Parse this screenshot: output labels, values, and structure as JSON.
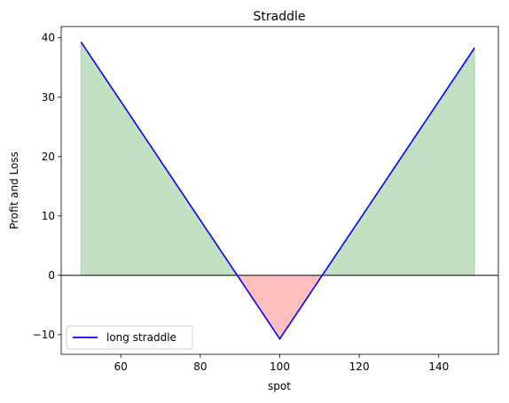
{
  "chart_data": {
    "type": "line",
    "title": "Straddle",
    "xlabel": "spot",
    "ylabel": "Profit and Loss",
    "xlim": [
      45,
      155
    ],
    "ylim": [
      -13.3,
      41.9
    ],
    "x_ticks": [
      60,
      80,
      100,
      120,
      140
    ],
    "y_ticks": [
      -10,
      0,
      10,
      20,
      30,
      40
    ],
    "grid": false,
    "legend_position": "lower-left",
    "zero_line": 0,
    "series": [
      {
        "name": "long straddle",
        "color": "#0000ff",
        "x": [
          50,
          100,
          149
        ],
        "y": [
          39.3,
          -10.7,
          38.3
        ]
      }
    ],
    "fill_positive_color": "#008000",
    "fill_negative_color": "#ff0000"
  }
}
